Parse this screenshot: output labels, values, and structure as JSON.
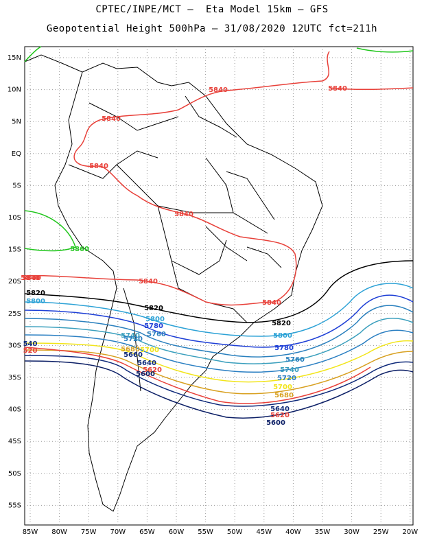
{
  "title_line1": "CPTEC/INPE/MCT –  Eta Model 15km – GFS",
  "title_line2": "Geopotential Height 500hPa – 31/08/2020 12UTC fct=211h",
  "lon_ticks": [
    "85W",
    "80W",
    "75W",
    "70W",
    "65W",
    "60W",
    "55W",
    "50W",
    "45W",
    "40W",
    "35W",
    "30W",
    "25W",
    "20W"
  ],
  "lat_ticks": [
    "15N",
    "10N",
    "5N",
    "EQ",
    "5S",
    "10S",
    "15S",
    "20S",
    "25S",
    "30S",
    "35S",
    "40S",
    "45S",
    "50S",
    "55S"
  ],
  "contours": [
    {
      "value": "5860",
      "color": "#22c61e",
      "labels": [
        "5860"
      ]
    },
    {
      "value": "5840",
      "color": "#e8413a",
      "labels": [
        "5840",
        "5840",
        "5840",
        "5840",
        "5840",
        "5840",
        "5840",
        "5840"
      ]
    },
    {
      "value": "5820",
      "color": "#000000",
      "labels": [
        "5820",
        "5820",
        "5820"
      ]
    },
    {
      "value": "5800",
      "color": "#2da2d6",
      "labels": [
        "5800",
        "5800",
        "5800"
      ]
    },
    {
      "value": "5780",
      "color": "#1e3fd6",
      "labels": [
        "5780",
        "5780"
      ]
    },
    {
      "value": "5760",
      "color": "#2a80be",
      "labels": [
        "5760",
        "5760"
      ]
    },
    {
      "value": "5740",
      "color": "#3a9fbd",
      "labels": [
        "5740",
        "5740"
      ]
    },
    {
      "value": "5720",
      "color": "#2a7fc2",
      "labels": [
        "5720",
        "5720"
      ]
    },
    {
      "value": "5700",
      "color": "#f2e51a",
      "labels": [
        "5700",
        "5700"
      ]
    },
    {
      "value": "5680",
      "color": "#d8a020",
      "labels": [
        "5680",
        "5680"
      ]
    },
    {
      "value": "5660",
      "color": "#0f2a7a",
      "labels": [
        "5660"
      ]
    },
    {
      "value": "5640",
      "color": "#0f2a7a",
      "labels": [
        "5640",
        "5640"
      ]
    },
    {
      "value": "5620",
      "color": "#e8413a",
      "labels": [
        "5620",
        "5620"
      ]
    },
    {
      "value": "5600",
      "color": "#0c1f66",
      "labels": [
        "5600",
        "5600"
      ]
    }
  ],
  "edge_labels": [
    "540",
    "5840",
    "520"
  ],
  "colors": {
    "grid": "#9a9a9a",
    "coast": "#000000",
    "background": "#ffffff"
  }
}
